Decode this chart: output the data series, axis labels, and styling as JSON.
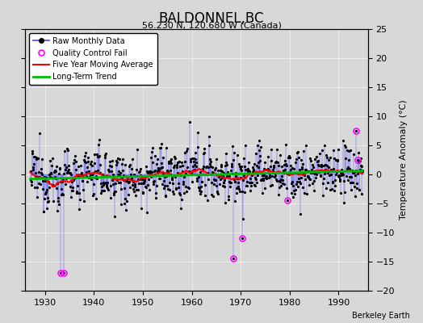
{
  "title": "BALDONNEL,BC",
  "subtitle": "56.230 N, 120.680 W (Canada)",
  "credit": "Berkeley Earth",
  "ylabel_right": "Temperature Anomaly (°C)",
  "xlim": [
    1926,
    1996
  ],
  "ylim": [
    -20,
    25
  ],
  "yticks": [
    -20,
    -15,
    -10,
    -5,
    0,
    5,
    10,
    15,
    20,
    25
  ],
  "xticks": [
    1930,
    1940,
    1950,
    1960,
    1970,
    1980,
    1990
  ],
  "background_color": "#d8d8d8",
  "plot_background": "#d8d8d8",
  "line_color": "#4444ff",
  "marker_color": "#000000",
  "ma_color": "#ff0000",
  "trend_color": "#00bb00",
  "qc_color": "#ff00ff",
  "seed": 12345,
  "start_year": 1927.0,
  "end_year": 1994.9,
  "n_months": 816
}
